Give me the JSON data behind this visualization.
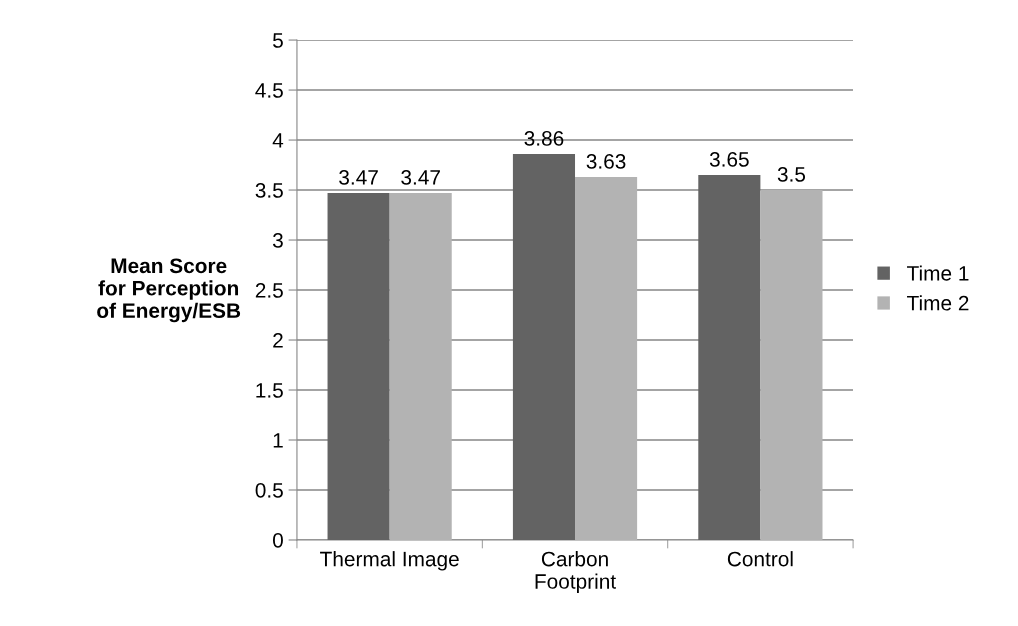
{
  "chart_data": {
    "type": "bar",
    "ylabel": "Mean Score\nfor Perception\nof Energy/ESB",
    "categories": [
      "Thermal Image",
      "Carbon\nFootprint",
      "Control"
    ],
    "series": [
      {
        "name": "Time 1",
        "color": "#636363",
        "values": [
          3.47,
          3.86,
          3.65
        ]
      },
      {
        "name": "Time 2",
        "color": "#b3b3b3",
        "values": [
          3.47,
          3.63,
          3.5
        ]
      }
    ],
    "ylim": [
      0,
      5
    ],
    "yticks": [
      0,
      0.5,
      1,
      1.5,
      2,
      2.5,
      3,
      3.5,
      4,
      4.5,
      5
    ],
    "grid": "y",
    "legend": "right",
    "data_labels": true
  }
}
